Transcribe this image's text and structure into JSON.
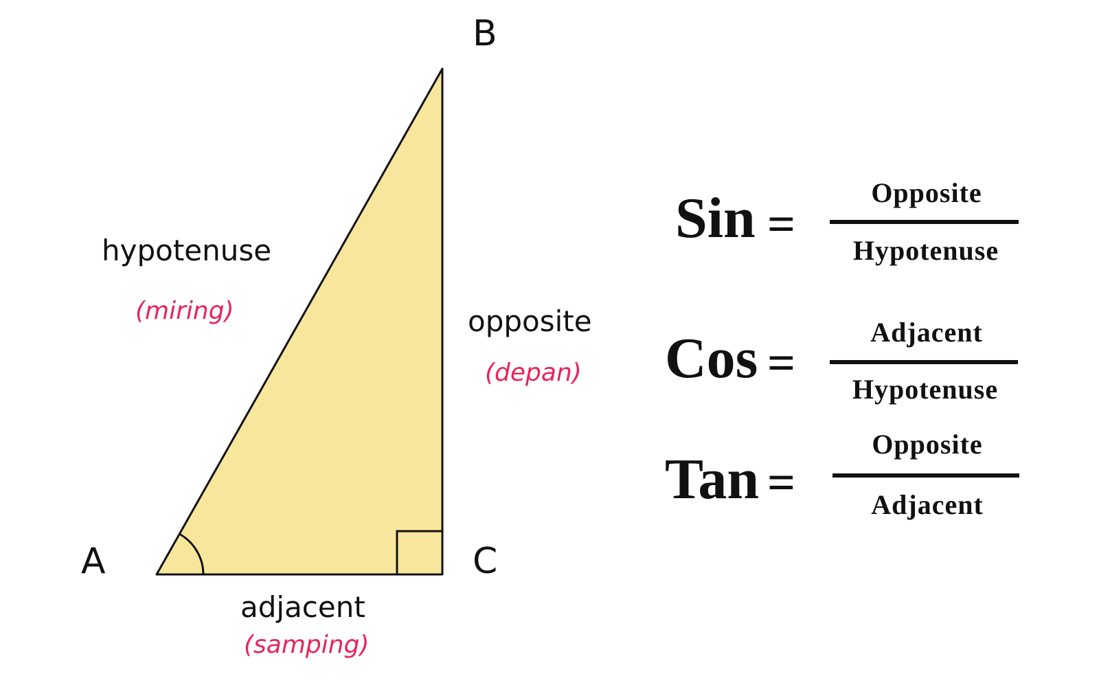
{
  "colors": {
    "triangle_fill": "#f8e69c",
    "stroke": "#111111",
    "translation_text": "#e8245a"
  },
  "vertices": {
    "a": "A",
    "b": "B",
    "c": "C"
  },
  "sides": {
    "hypotenuse": {
      "label": "hypotenuse",
      "translation": "(miring)"
    },
    "opposite": {
      "label": "opposite",
      "translation": "(depan)"
    },
    "adjacent": {
      "label": "adjacent",
      "translation": "(samping)"
    }
  },
  "formulas": [
    {
      "fn": "Sin",
      "equals": "=",
      "numerator": "Opposite",
      "denominator": "Hypotenuse"
    },
    {
      "fn": "Cos",
      "equals": "=",
      "numerator": "Adjacent",
      "denominator": "Hypotenuse"
    },
    {
      "fn": "Tan",
      "equals": "=",
      "numerator": "Opposite",
      "denominator": "Adjacent"
    }
  ]
}
